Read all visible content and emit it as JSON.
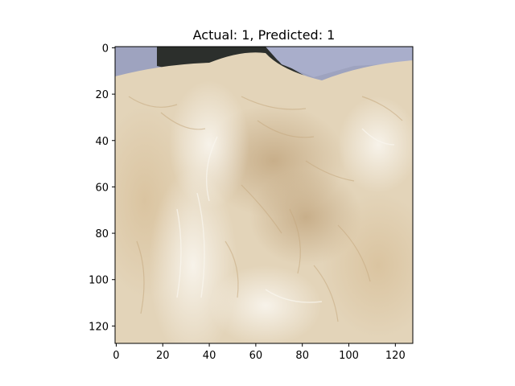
{
  "figure": {
    "title": "Actual: 1, Predicted: 1"
  },
  "image": {
    "description_colors": {
      "fur_base": "#e6d8c0",
      "fur_light": "#f3ece0",
      "fur_shadow": "#c9ad86",
      "background_top": "#9ea3bf",
      "dark_patch": "#2c2f2c"
    }
  },
  "axes": {
    "x_ticks": [
      0,
      20,
      40,
      60,
      80,
      100,
      120
    ],
    "y_ticks": [
      0,
      20,
      40,
      60,
      80,
      100,
      120
    ],
    "x_range": [
      0,
      128
    ],
    "y_range": [
      0,
      128
    ]
  }
}
